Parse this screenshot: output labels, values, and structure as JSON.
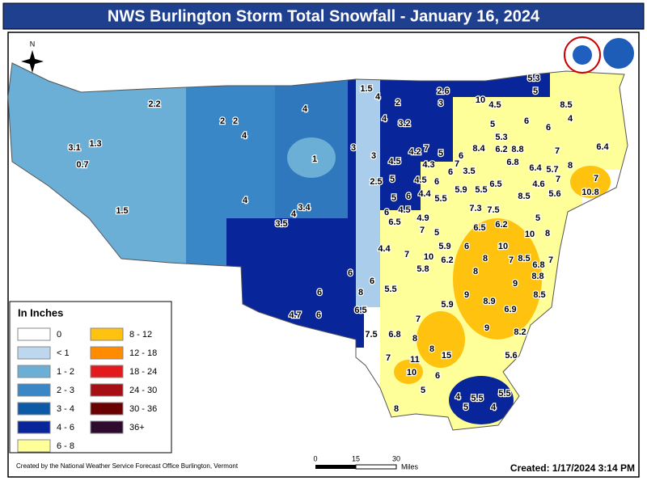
{
  "title": "NWS Burlington Storm Total Snowfall - January 16, 2024",
  "north": "N",
  "legend": {
    "title": "In Inches",
    "items": [
      {
        "label": "0",
        "color": "#ffffff"
      },
      {
        "label": "< 1",
        "color": "#bdd7ee"
      },
      {
        "label": "1 - 2",
        "color": "#6baed6"
      },
      {
        "label": "2 - 3",
        "color": "#3a87c8"
      },
      {
        "label": "3 - 4",
        "color": "#0b5aa8"
      },
      {
        "label": "4 - 6",
        "color": "#08259a"
      },
      {
        "label": "6 - 8",
        "color": "#ffff99"
      },
      {
        "label": "8 - 12",
        "color": "#ffc20e"
      },
      {
        "label": "12 - 18",
        "color": "#ff8c00"
      },
      {
        "label": "18 - 24",
        "color": "#e31a1c"
      },
      {
        "label": "24 - 30",
        "color": "#a50f15"
      },
      {
        "label": "30 - 36",
        "color": "#6b0000"
      },
      {
        "label": "36+",
        "color": "#2d0a2e"
      }
    ]
  },
  "scale": {
    "ticks": [
      "0",
      "15",
      "30"
    ],
    "unit": "Miles"
  },
  "footer": {
    "credit": "Created by the National Weather Service Forecast Office Burlington, Vermont",
    "created": "Created: 1/17/2024 3:14 PM"
  },
  "labels": [
    "1.5",
    "4",
    "2.6",
    "3",
    "2",
    "4",
    "5.3",
    "5",
    "10",
    "4.5",
    "8.5",
    "4",
    "2.2",
    "4",
    "2",
    "2",
    "3.2",
    "5",
    "6",
    "6",
    "5.3",
    "4",
    "3.1",
    "1.3",
    "0.7",
    "3",
    "4.2",
    "7",
    "5",
    "6",
    "8.4",
    "6.2",
    "8.8",
    "7",
    "6.4",
    "1",
    "3",
    "4.5",
    "4.3",
    "7",
    "6.8",
    "8",
    "6.4",
    "5.7",
    "7",
    "7",
    "3.5",
    "6",
    "2.5",
    "5",
    "4.5",
    "6",
    "5.9",
    "5.5",
    "6.5",
    "4.6",
    "10.8",
    "8.5",
    "5.6",
    "5",
    "6",
    "4.4",
    "5.5",
    "7.3",
    "7.5",
    "4",
    "1.5",
    "3.4",
    "4",
    "6",
    "4.5",
    "6.5",
    "4.9",
    "6.5",
    "6.2",
    "5",
    "3.5",
    "7",
    "5",
    "10",
    "8",
    "5.9",
    "6",
    "10",
    "4.4",
    "7",
    "10",
    "6.2",
    "7",
    "8.5",
    "7",
    "8",
    "6.8",
    "5.8",
    "6",
    "8",
    "8.8",
    "6",
    "9",
    "5.5",
    "8",
    "6",
    "9",
    "8.5",
    "5.9",
    "8.9",
    "6.9",
    "6",
    "6.5",
    "7",
    "4.7",
    "9",
    "8.2",
    "7.5",
    "6.8",
    "8",
    "7",
    "11",
    "15",
    "8",
    "5.6",
    "10",
    "6",
    "5",
    "4",
    "5.5",
    "5.5",
    "5",
    "4",
    "8"
  ]
}
